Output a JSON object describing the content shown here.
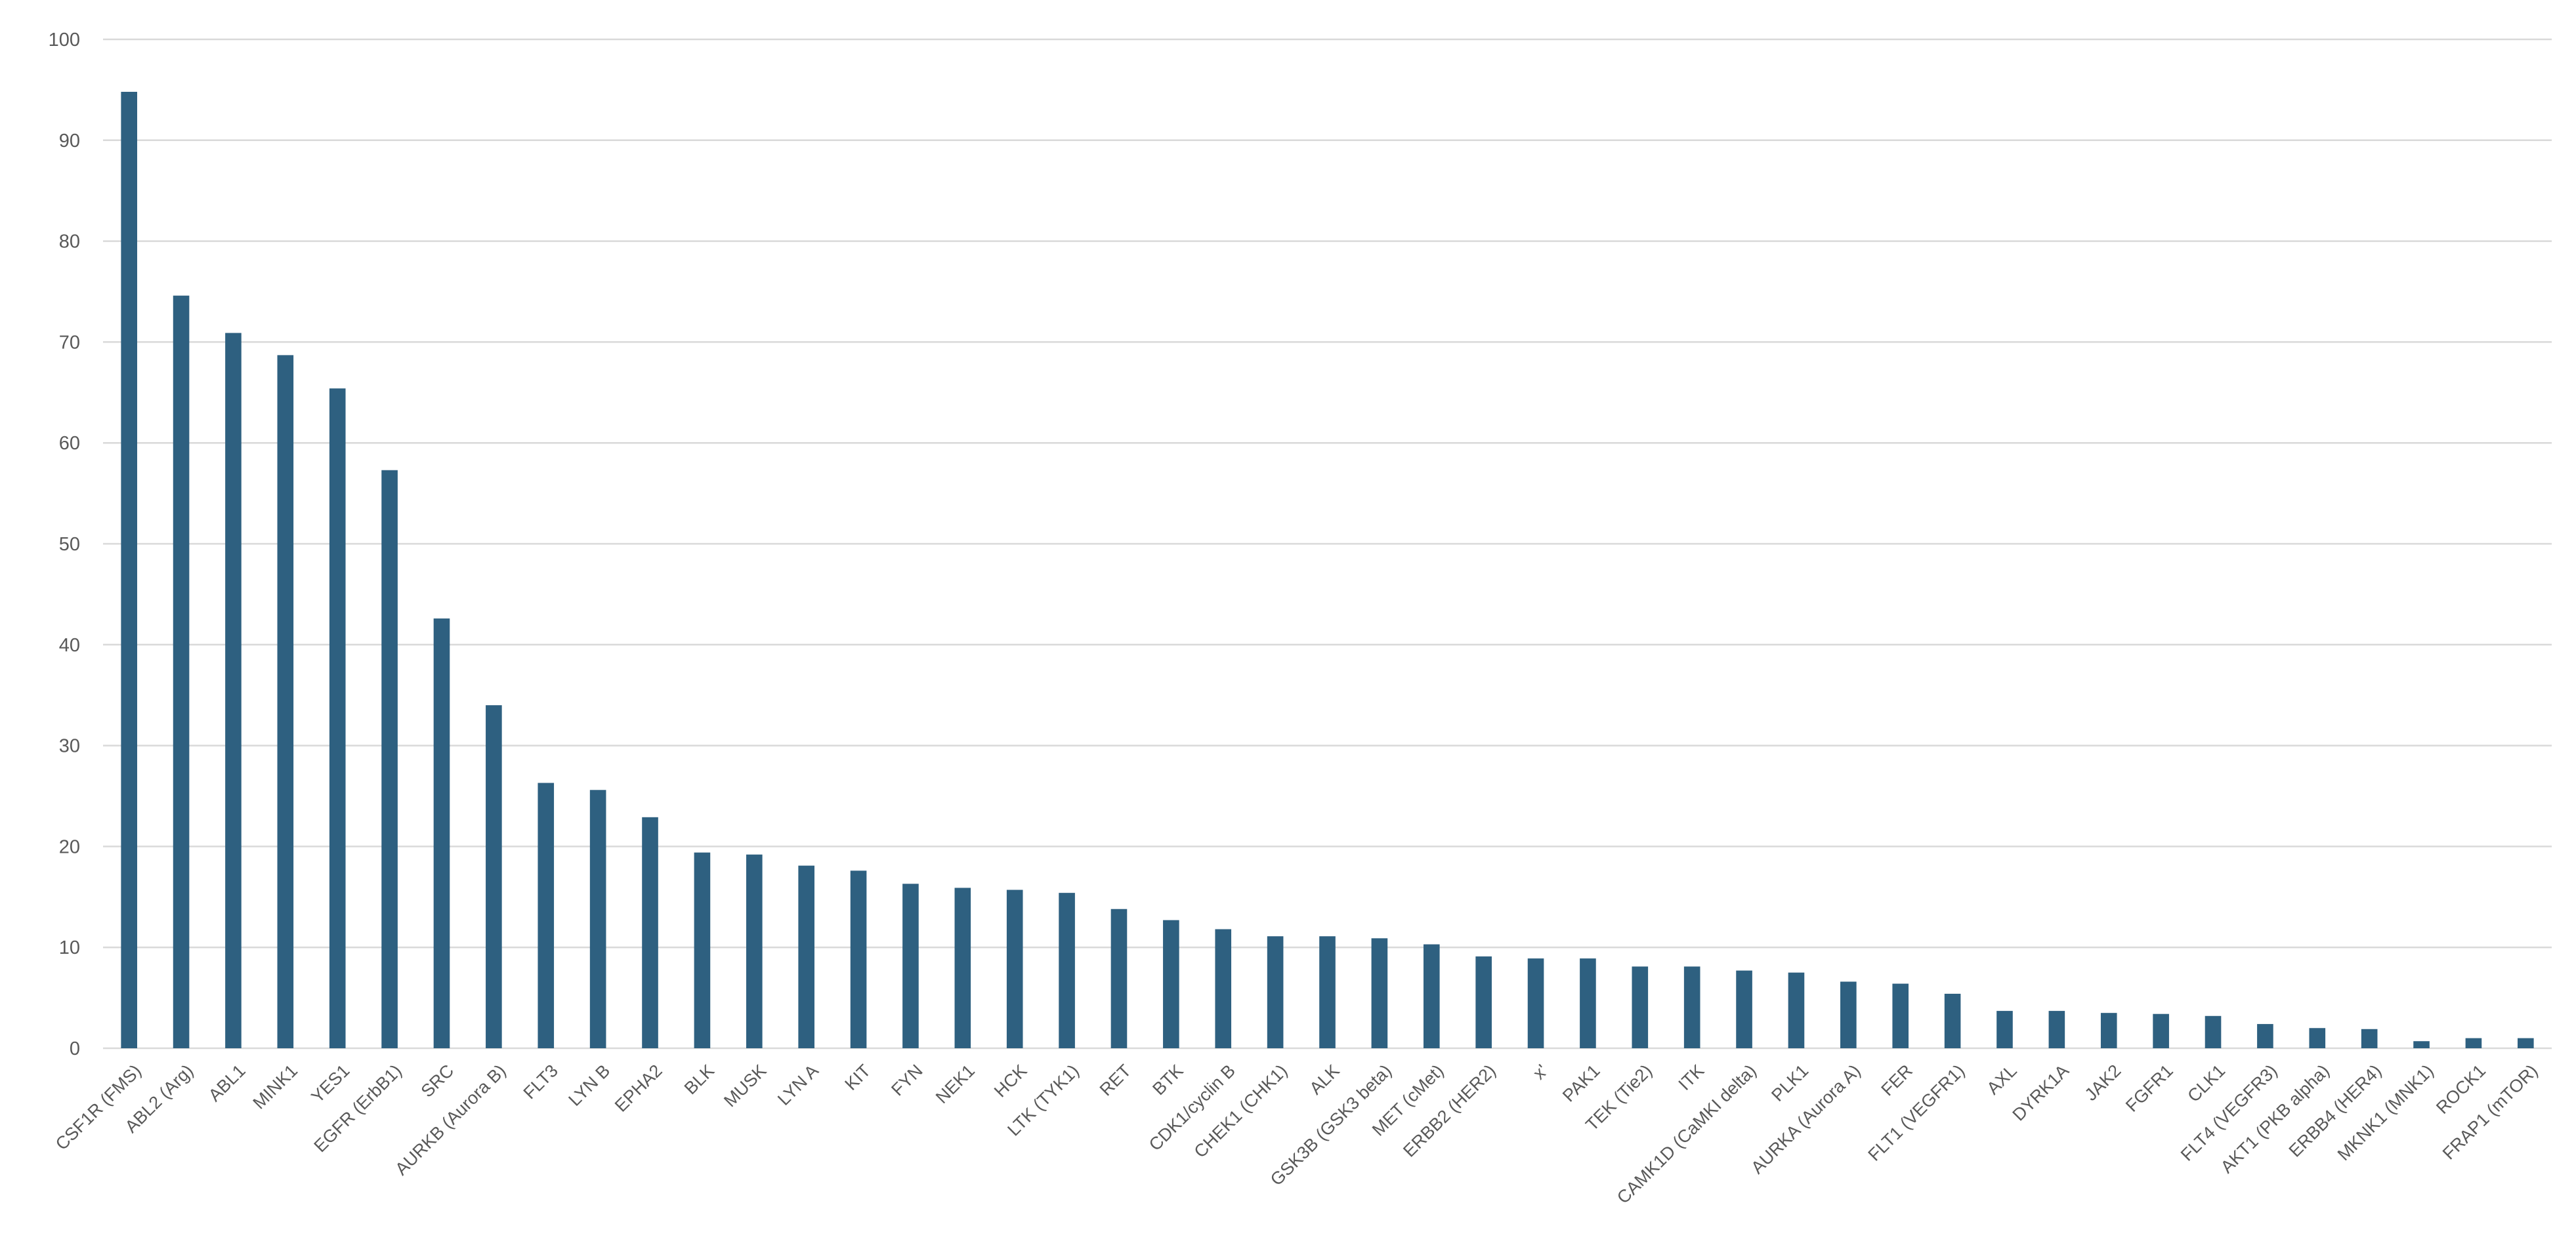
{
  "chart_data": {
    "type": "bar",
    "title": "",
    "xlabel": "",
    "ylabel": "",
    "ylim": [
      0,
      100
    ],
    "yticks": [
      0,
      10,
      20,
      30,
      40,
      50,
      60,
      70,
      80,
      90,
      100
    ],
    "grid": true,
    "legend": "none",
    "bar_color": "#2e6080",
    "categories": [
      "CSF1R (FMS)",
      "ABL2 (Arg)",
      "ABL1",
      "MINK1",
      "YES1",
      "EGFR (ErbB1)",
      "SRC",
      "AURKB (Aurora B)",
      "FLT3",
      "LYN B",
      "EPHA2",
      "BLK",
      "MUSK",
      "LYN A",
      "KIT",
      "FYN",
      "NEK1",
      "HCK",
      "LTK (TYK1)",
      "RET",
      "BTK",
      "CDK1/cyclin B",
      "CHEK1 (CHK1)",
      "ALK",
      "GSK3B (GSK3 beta)",
      "MET (cMet)",
      "ERBB2 (HER2)",
      "x'",
      "PAK1",
      "TEK (Tie2)",
      "ITK",
      "CAMK1D (CaMKI delta)",
      "PLK1",
      "AURKA (Aurora A)",
      "FER",
      "FLT1 (VEGFR1)",
      "AXL",
      "DYRK1A",
      "JAK2",
      "FGFR1",
      "CLK1",
      "FLT4 (VEGFR3)",
      "AKT1 (PKB alpha)",
      "ERBB4 (HER4)",
      "MKNK1 (MNK1)",
      "ROCK1",
      "FRAP1 (mTOR)"
    ],
    "values": [
      94.8,
      74.6,
      70.9,
      68.7,
      65.4,
      57.3,
      42.6,
      34.0,
      26.3,
      25.6,
      22.9,
      19.4,
      19.2,
      18.1,
      17.6,
      16.3,
      15.9,
      15.7,
      15.4,
      13.8,
      12.7,
      11.8,
      11.1,
      11.1,
      10.9,
      10.3,
      9.1,
      8.9,
      8.9,
      8.1,
      8.1,
      7.7,
      7.5,
      6.6,
      6.4,
      5.4,
      3.7,
      3.7,
      3.5,
      3.4,
      3.2,
      2.4,
      2.0,
      1.9,
      0.7,
      1.0,
      1.0
    ]
  }
}
